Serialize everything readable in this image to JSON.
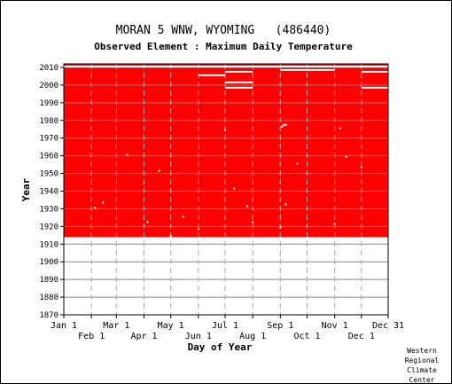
{
  "chart_data": {
    "type": "heatmap",
    "title": "MORAN 5 WNW, WYOMING   (486440)",
    "subtitle": "Observed Element : Maximum Daily Temperature",
    "xlabel": "Day of Year",
    "ylabel": "Year",
    "xlim": [
      1,
      365
    ],
    "ylim": [
      1870,
      2012
    ],
    "y_ticks": [
      1870,
      1880,
      1890,
      1900,
      1910,
      1920,
      1930,
      1940,
      1950,
      1960,
      1970,
      1980,
      1990,
      2000,
      2010
    ],
    "y_tick_labels": [
      "1870",
      "1880",
      "1890",
      "1900",
      "1910",
      "1920",
      "1930",
      "1940",
      "1950",
      "1960",
      "1970",
      "1980",
      "1990",
      "2000",
      "2010"
    ],
    "x_ticks_upper": [
      {
        "label": "Jan 1",
        "day": 1
      },
      {
        "label": "Mar 1",
        "day": 60
      },
      {
        "label": "May 1",
        "day": 121
      },
      {
        "label": "Jul 1",
        "day": 182
      },
      {
        "label": "Sep 1",
        "day": 244
      },
      {
        "label": "Nov 1",
        "day": 305
      },
      {
        "label": "Dec 31",
        "day": 365
      }
    ],
    "x_ticks_lower": [
      {
        "label": "Feb 1",
        "day": 32
      },
      {
        "label": "Apr 1",
        "day": 91
      },
      {
        "label": "Jun 1",
        "day": 152
      },
      {
        "label": "Aug 1",
        "day": 213
      },
      {
        "label": "Oct 1",
        "day": 274
      },
      {
        "label": "Dec 1",
        "day": 335
      }
    ],
    "data_color": "#ff0000",
    "grid": true,
    "coverage": {
      "start_year": 1914,
      "end_year": 2011,
      "start_day": 1,
      "end_day": 365
    },
    "missing_segments": [
      {
        "year": 2007,
        "start_day": 182,
        "end_day": 213
      },
      {
        "year": 2010,
        "start_day": 182,
        "end_day": 213
      },
      {
        "year": 2001,
        "start_day": 182,
        "end_day": 213
      },
      {
        "year": 1998,
        "start_day": 182,
        "end_day": 213
      },
      {
        "year": 2008,
        "start_day": 244,
        "end_day": 274
      },
      {
        "year": 2010,
        "start_day": 244,
        "end_day": 274
      },
      {
        "year": 2008,
        "start_day": 274,
        "end_day": 305
      },
      {
        "year": 2010,
        "start_day": 305,
        "end_day": 335
      },
      {
        "year": 2007,
        "start_day": 335,
        "end_day": 365
      },
      {
        "year": 2010,
        "start_day": 335,
        "end_day": 365
      },
      {
        "year": 1998,
        "start_day": 335,
        "end_day": 365
      },
      {
        "year": 2005,
        "start_day": 152,
        "end_day": 182
      },
      {
        "year": 2010,
        "start_day": 1,
        "end_day": 365
      }
    ],
    "missing_days": [
      {
        "year": 1914,
        "day": 121
      },
      {
        "year": 1918,
        "day": 152
      },
      {
        "year": 1922,
        "day": 213
      },
      {
        "year": 1919,
        "day": 244
      },
      {
        "year": 1921,
        "day": 305
      },
      {
        "year": 1930,
        "day": 36
      },
      {
        "year": 1933,
        "day": 45
      },
      {
        "year": 1922,
        "day": 95
      },
      {
        "year": 1925,
        "day": 135
      },
      {
        "year": 1931,
        "day": 207
      },
      {
        "year": 1932,
        "day": 250
      },
      {
        "year": 1941,
        "day": 192
      },
      {
        "year": 1951,
        "day": 108
      },
      {
        "year": 1953,
        "day": 335
      },
      {
        "year": 1955,
        "day": 263
      },
      {
        "year": 1959,
        "day": 318
      },
      {
        "year": 1960,
        "day": 72
      },
      {
        "year": 1974,
        "day": 182
      },
      {
        "year": 1975,
        "day": 311
      },
      {
        "year": 1976,
        "day": 246
      },
      {
        "year": 1977,
        "day": 248
      },
      {
        "year": 1977,
        "day": 250
      }
    ]
  },
  "credit": [
    "Western",
    "Regional",
    "Climate",
    "Center"
  ]
}
